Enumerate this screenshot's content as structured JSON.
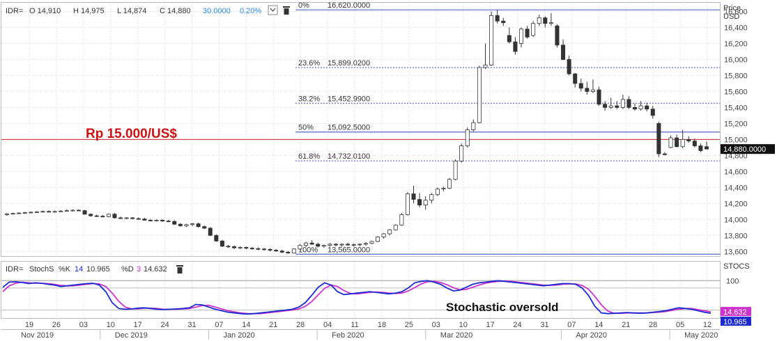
{
  "header": {
    "ric": "IDR=",
    "open": "O 14,910",
    "high": "H 14,975",
    "low": "L 14,874",
    "close": "C 14,880",
    "change": "30.0000",
    "change_pct": "0.20%",
    "axis_title_1": "Price",
    "axis_title_2": "USD"
  },
  "stoch_header": {
    "ric": "IDR=",
    "name": "StochS",
    "k_label": "%K",
    "k_period": "14",
    "k_value": "10.965",
    "d_label": "%D",
    "d_period": "3",
    "d_value": "14.632",
    "axis_title": "STOCS"
  },
  "annotations": {
    "rp_label": "Rp 15.000/US$",
    "oversold_label": "Stochastic oversold",
    "last_price_tag": "14,880.0000",
    "k_tag": "10.965",
    "d_tag": "14.632"
  },
  "colors": {
    "fib_line": "#5566cc",
    "red_line": "#cc2222",
    "rp_label": "#cc1111",
    "k_line": "#1a2ad0",
    "d_line": "#cc33cc",
    "candle_up": "#ffffff",
    "candle_down": "#333333"
  },
  "chart_data": [
    {
      "type": "candlestick",
      "y_axis_label": "Price USD",
      "ylim": [
        13550,
        16700
      ],
      "y_ticks": [
        13600,
        13800,
        14000,
        14200,
        14400,
        14600,
        14800,
        15000,
        15200,
        15400,
        15600,
        15800,
        16000,
        16200,
        16400,
        16600
      ],
      "y_tick_labels": [
        "13,600",
        "13,800",
        "14,000",
        "14,200",
        "14,400",
        "14,600",
        "14,800",
        "15,000",
        "15,200",
        "15,400",
        "15,600",
        "15,800",
        "16,000",
        "16,200",
        "16,400",
        "16,600"
      ],
      "x_ticks": [
        "19",
        "26",
        "03",
        "10",
        "17",
        "24",
        "31",
        "07",
        "14",
        "21",
        "28",
        "04",
        "11",
        "18",
        "25",
        "03",
        "10",
        "17",
        "24",
        "31",
        "07",
        "14",
        "21",
        "28",
        "05",
        "12"
      ],
      "x_months": [
        "Nov 2019",
        "Dec 2019",
        "Jan 2020",
        "Feb 2020",
        "Mar 2020",
        "Apr 2020",
        "May 2020"
      ],
      "reference_line": {
        "label": "Rp 15.000/US$",
        "value": 15000
      },
      "last_price": 14880,
      "fibonacci": [
        {
          "pct": "0%",
          "value": "16,620.0000",
          "level": 16620,
          "style": "solid"
        },
        {
          "pct": "23.6%",
          "value": "15,899.0200",
          "level": 15899.02,
          "style": "dotted"
        },
        {
          "pct": "38.2%",
          "value": "15,452.9900",
          "level": 15452.99,
          "style": "dotted"
        },
        {
          "pct": "50%",
          "value": "15,092.5000",
          "level": 15092.5,
          "style": "solid"
        },
        {
          "pct": "61.8%",
          "value": "14,732.0100",
          "level": 14732.01,
          "style": "dotted"
        },
        {
          "pct": "100%",
          "value": "13,565.0000",
          "level": 13565,
          "style": "solid"
        }
      ],
      "candles": [
        [
          14060,
          14080,
          14045,
          14070
        ],
        [
          14070,
          14085,
          14060,
          14075
        ],
        [
          14075,
          14090,
          14065,
          14080
        ],
        [
          14080,
          14095,
          14070,
          14085
        ],
        [
          14085,
          14100,
          14075,
          14090
        ],
        [
          14090,
          14105,
          14080,
          14095
        ],
        [
          14095,
          14110,
          14085,
          14100
        ],
        [
          14100,
          14112,
          14088,
          14095
        ],
        [
          14095,
          14110,
          14085,
          14100
        ],
        [
          14100,
          14115,
          14090,
          14105
        ],
        [
          14105,
          14125,
          14095,
          14110
        ],
        [
          14110,
          14125,
          14100,
          14115
        ],
        [
          14115,
          14125,
          14105,
          14110
        ],
        [
          14110,
          14120,
          14060,
          14065
        ],
        [
          14065,
          14075,
          14035,
          14045
        ],
        [
          14045,
          14060,
          14030,
          14040
        ],
        [
          14040,
          14055,
          14025,
          14035
        ],
        [
          14035,
          14075,
          14025,
          14065
        ],
        [
          14065,
          14080,
          14010,
          14020
        ],
        [
          14020,
          14035,
          14005,
          14015
        ],
        [
          14015,
          14030,
          14005,
          14020
        ],
        [
          14020,
          14030,
          14000,
          14010
        ],
        [
          14010,
          14025,
          13995,
          14005
        ],
        [
          14005,
          14020,
          13985,
          13990
        ],
        [
          13990,
          14005,
          13975,
          13985
        ],
        [
          13985,
          14000,
          13975,
          13990
        ],
        [
          13990,
          14000,
          13970,
          13980
        ],
        [
          13980,
          13995,
          13965,
          13975
        ],
        [
          13975,
          13990,
          13930,
          13940
        ],
        [
          13940,
          13955,
          13910,
          13920
        ],
        [
          13920,
          13945,
          13905,
          13935
        ],
        [
          13935,
          13955,
          13915,
          13945
        ],
        [
          13945,
          13960,
          13900,
          13910
        ],
        [
          13910,
          13925,
          13880,
          13890
        ],
        [
          13890,
          13905,
          13790,
          13800
        ],
        [
          13800,
          13815,
          13720,
          13730
        ],
        [
          13730,
          13745,
          13655,
          13665
        ],
        [
          13665,
          13680,
          13645,
          13660
        ],
        [
          13660,
          13675,
          13630,
          13645
        ],
        [
          13645,
          13665,
          13630,
          13650
        ],
        [
          13650,
          13660,
          13625,
          13640
        ],
        [
          13640,
          13655,
          13620,
          13635
        ],
        [
          13635,
          13650,
          13615,
          13630
        ],
        [
          13630,
          13645,
          13610,
          13625
        ],
        [
          13625,
          13640,
          13600,
          13615
        ],
        [
          13615,
          13630,
          13595,
          13605
        ],
        [
          13605,
          13620,
          13580,
          13590
        ],
        [
          13590,
          13605,
          13570,
          13580
        ],
        [
          13580,
          13640,
          13575,
          13630
        ],
        [
          13630,
          13690,
          13615,
          13675
        ],
        [
          13675,
          13720,
          13655,
          13705
        ],
        [
          13705,
          13740,
          13680,
          13690
        ],
        [
          13690,
          13710,
          13650,
          13665
        ],
        [
          13665,
          13685,
          13645,
          13675
        ],
        [
          13675,
          13705,
          13660,
          13690
        ],
        [
          13690,
          13705,
          13665,
          13680
        ],
        [
          13680,
          13700,
          13660,
          13690
        ],
        [
          13690,
          13710,
          13670,
          13680
        ],
        [
          13680,
          13700,
          13660,
          13685
        ],
        [
          13685,
          13700,
          13665,
          13690
        ],
        [
          13690,
          13715,
          13670,
          13700
        ],
        [
          13700,
          13735,
          13690,
          13725
        ],
        [
          13725,
          13790,
          13715,
          13780
        ],
        [
          13780,
          13830,
          13760,
          13820
        ],
        [
          13820,
          13880,
          13800,
          13870
        ],
        [
          13870,
          13940,
          13860,
          13930
        ],
        [
          13930,
          14080,
          13920,
          14060
        ],
        [
          14060,
          14340,
          14050,
          14320
        ],
        [
          14320,
          14420,
          14200,
          14250
        ],
        [
          14250,
          14330,
          14150,
          14180
        ],
        [
          14180,
          14290,
          14120,
          14240
        ],
        [
          14240,
          14330,
          14200,
          14310
        ],
        [
          14310,
          14400,
          14290,
          14380
        ],
        [
          14380,
          14410,
          14350,
          14390
        ],
        [
          14390,
          14520,
          14380,
          14500
        ],
        [
          14500,
          14750,
          14490,
          14730
        ],
        [
          14730,
          14950,
          14710,
          14920
        ],
        [
          14920,
          15150,
          14900,
          15120
        ],
        [
          15120,
          15250,
          15100,
          15210
        ],
        [
          15210,
          15920,
          15200,
          15900
        ],
        [
          15900,
          16200,
          15880,
          15930
        ],
        [
          15930,
          16600,
          15920,
          16550
        ],
        [
          16550,
          16620,
          16450,
          16480
        ],
        [
          16480,
          16520,
          16420,
          16460
        ],
        [
          16300,
          16400,
          16200,
          16220
        ],
        [
          16220,
          16280,
          16060,
          16100
        ],
        [
          16200,
          16400,
          16150,
          16380
        ],
        [
          16380,
          16420,
          16260,
          16280
        ],
        [
          16300,
          16480,
          16280,
          16450
        ],
        [
          16450,
          16560,
          16420,
          16520
        ],
        [
          16520,
          16540,
          16400,
          16450
        ],
        [
          16450,
          16580,
          16420,
          16460
        ],
        [
          16420,
          16440,
          16150,
          16180
        ],
        [
          16180,
          16250,
          15990,
          16000
        ],
        [
          16000,
          16050,
          15800,
          15820
        ],
        [
          15820,
          15830,
          15650,
          15700
        ],
        [
          15700,
          15760,
          15600,
          15640
        ],
        [
          15640,
          15720,
          15560,
          15600
        ],
        [
          15600,
          15750,
          15580,
          15620
        ],
        [
          15620,
          15660,
          15420,
          15440
        ],
        [
          15440,
          15480,
          15360,
          15400
        ],
        [
          15400,
          15520,
          15380,
          15420
        ],
        [
          15420,
          15480,
          15380,
          15400
        ],
        [
          15400,
          15560,
          15380,
          15500
        ],
        [
          15500,
          15540,
          15380,
          15400
        ],
        [
          15400,
          15450,
          15360,
          15380
        ],
        [
          15380,
          15480,
          15360,
          15420
        ],
        [
          15420,
          15460,
          15350,
          15380
        ],
        [
          15380,
          15420,
          15260,
          15300
        ],
        [
          15200,
          15220,
          14780,
          14820
        ],
        [
          14820,
          14840,
          14800,
          14810
        ],
        [
          14900,
          15050,
          14890,
          15020
        ],
        [
          15020,
          15060,
          14900,
          14910
        ],
        [
          14910,
          15120,
          14890,
          15000
        ],
        [
          15000,
          15040,
          14960,
          14980
        ],
        [
          14980,
          15010,
          14900,
          14920
        ],
        [
          14920,
          14950,
          14840,
          14860
        ],
        [
          14910,
          14975,
          14874,
          14880
        ]
      ]
    },
    {
      "type": "line",
      "indicator": "StochS",
      "ylim": [
        0,
        110
      ],
      "y_ticks": [
        100
      ],
      "y_tick_labels": [
        "100"
      ],
      "series": [
        {
          "name": "%K 14",
          "values": [
            82,
            96,
            97,
            95,
            92,
            94,
            93,
            90,
            88,
            84,
            86,
            88,
            90,
            92,
            93,
            88,
            70,
            40,
            24,
            22,
            23,
            25,
            26,
            24,
            22,
            21,
            22,
            23,
            24,
            26,
            35,
            34,
            28,
            22,
            18,
            14,
            12,
            10,
            9,
            10,
            12,
            14,
            16,
            18,
            20,
            22,
            28,
            40,
            60,
            82,
            94,
            88,
            70,
            62,
            64,
            66,
            68,
            70,
            68,
            66,
            64,
            66,
            70,
            80,
            94,
            98,
            100,
            96,
            90,
            80,
            72,
            74,
            82,
            90,
            94,
            96,
            98,
            100,
            98,
            96,
            94,
            92,
            90,
            88,
            86,
            88,
            90,
            92,
            92,
            90,
            80,
            60,
            30,
            12,
            10,
            11,
            12,
            13,
            12,
            11,
            12,
            14,
            16,
            18,
            22,
            26,
            24,
            22,
            18,
            14,
            11
          ]
        },
        {
          "name": "%D 3",
          "values": [
            70,
            86,
            93,
            96,
            94,
            93,
            93,
            92,
            90,
            87,
            86,
            86,
            88,
            90,
            92,
            91,
            84,
            66,
            44,
            28,
            23,
            23,
            25,
            25,
            24,
            22,
            22,
            22,
            23,
            24,
            28,
            32,
            33,
            28,
            23,
            18,
            15,
            12,
            10,
            10,
            10,
            12,
            14,
            16,
            18,
            20,
            23,
            30,
            43,
            61,
            79,
            88,
            84,
            73,
            65,
            64,
            66,
            68,
            69,
            68,
            66,
            65,
            66,
            72,
            81,
            91,
            97,
            98,
            95,
            89,
            81,
            75,
            76,
            82,
            88,
            93,
            96,
            98,
            99,
            98,
            96,
            94,
            92,
            90,
            88,
            87,
            88,
            90,
            91,
            91,
            87,
            77,
            57,
            34,
            17,
            11,
            11,
            12,
            12,
            12,
            12,
            13,
            14,
            16,
            19,
            22,
            24,
            24,
            21,
            18,
            15
          ]
        }
      ]
    }
  ]
}
